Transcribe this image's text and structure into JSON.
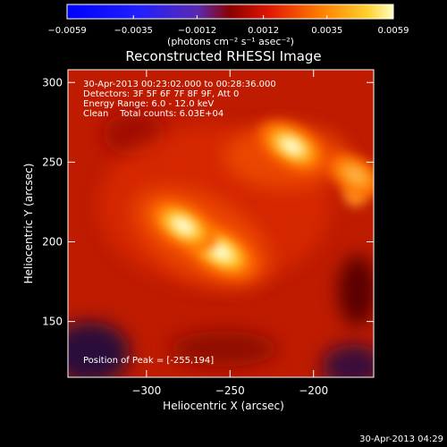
{
  "chart_data": {
    "type": "heatmap",
    "title": "Reconstructed RHESSI Image",
    "xlabel": "Heliocentric X (arcsec)",
    "ylabel": "Heliocentric Y (arcsec)",
    "xlim": [
      -347,
      -164
    ],
    "ylim": [
      115,
      308
    ],
    "x_ticks": [
      -300,
      -250,
      -200
    ],
    "y_ticks": [
      150,
      200,
      250,
      300
    ],
    "colorbar": {
      "range": [
        -0.0059,
        0.0059
      ],
      "ticks": [
        -0.0059,
        -0.0035,
        -0.0012,
        0.0012,
        0.0035,
        0.0059
      ],
      "tick_labels": [
        "−0.0059",
        "−0.0035",
        "−0.0012",
        "0.0012",
        "0.0035",
        "0.0059"
      ],
      "unit_label": "(photons cm⁻² s⁻¹ asec⁻²)"
    },
    "annotations": [
      "30-Apr-2013 00:23:02.000 to 00:28:36.000",
      "Detectors: 3F 5F 6F 7F 8F 9F, Att 0",
      "Energy Range: 6.0 - 12.0 keV",
      "Clean    Total counts: 6.03E+04"
    ],
    "peak_label": "Position of Peak = [-255,194]",
    "peak": [
      -255,
      194
    ],
    "sources": [
      {
        "x": -256,
        "y": 194,
        "peak": 0.0059
      },
      {
        "x": -278,
        "y": 210,
        "peak": 0.0052
      },
      {
        "x": -213,
        "y": 260,
        "peak": 0.005
      },
      {
        "x": -175,
        "y": 242,
        "peak": 0.003
      }
    ],
    "grid": false
  },
  "footer": {
    "timestamp": "30-Apr-2013 04:29"
  }
}
